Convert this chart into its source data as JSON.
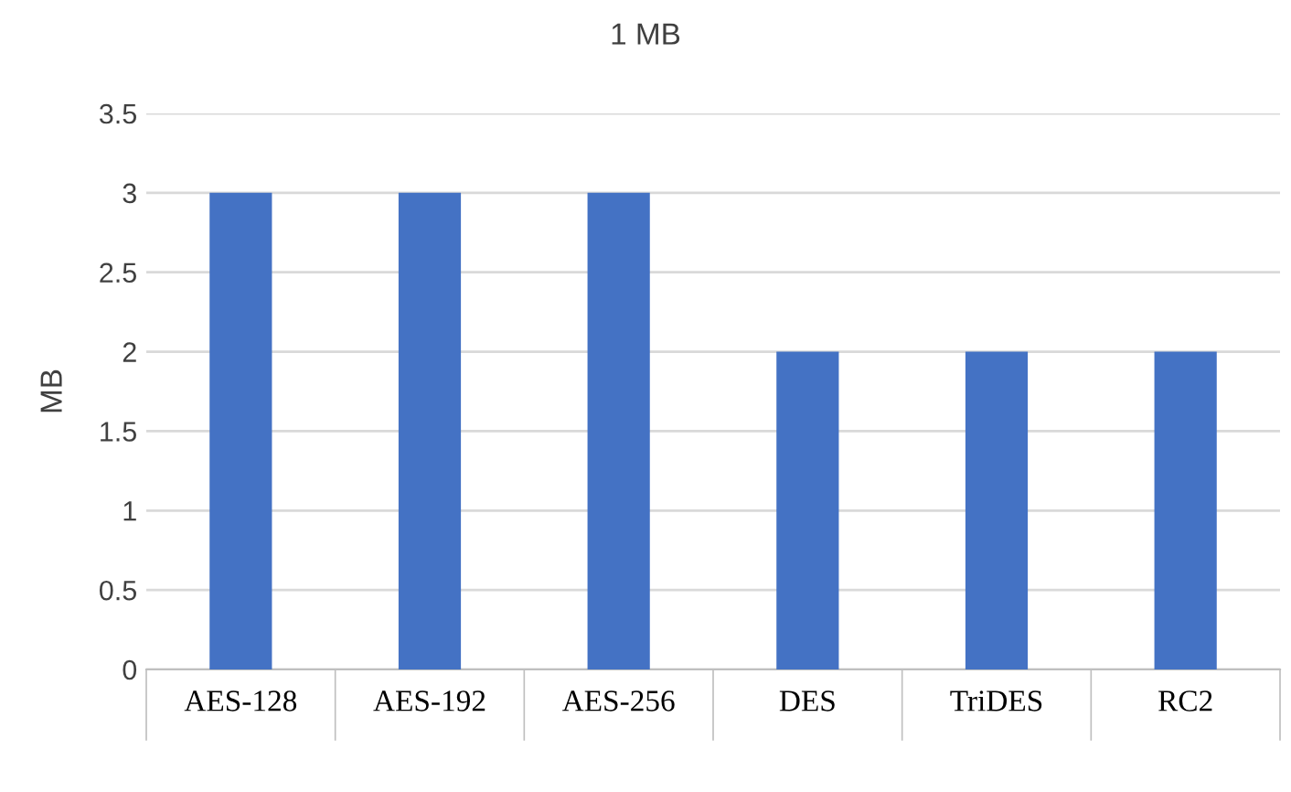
{
  "chart_data": {
    "type": "bar",
    "title": "1 MB",
    "ylabel": "MB",
    "categories": [
      "AES-128",
      "AES-192",
      "AES-256",
      "DES",
      "TriDES",
      "RC2"
    ],
    "values": [
      3,
      3,
      3,
      2,
      2,
      2
    ],
    "color": "#4472c4",
    "ylim": [
      0,
      3.5
    ],
    "yticks": [
      0,
      0.5,
      1,
      1.5,
      2,
      2.5,
      3,
      3.5
    ],
    "grid": "y",
    "legend": false
  }
}
